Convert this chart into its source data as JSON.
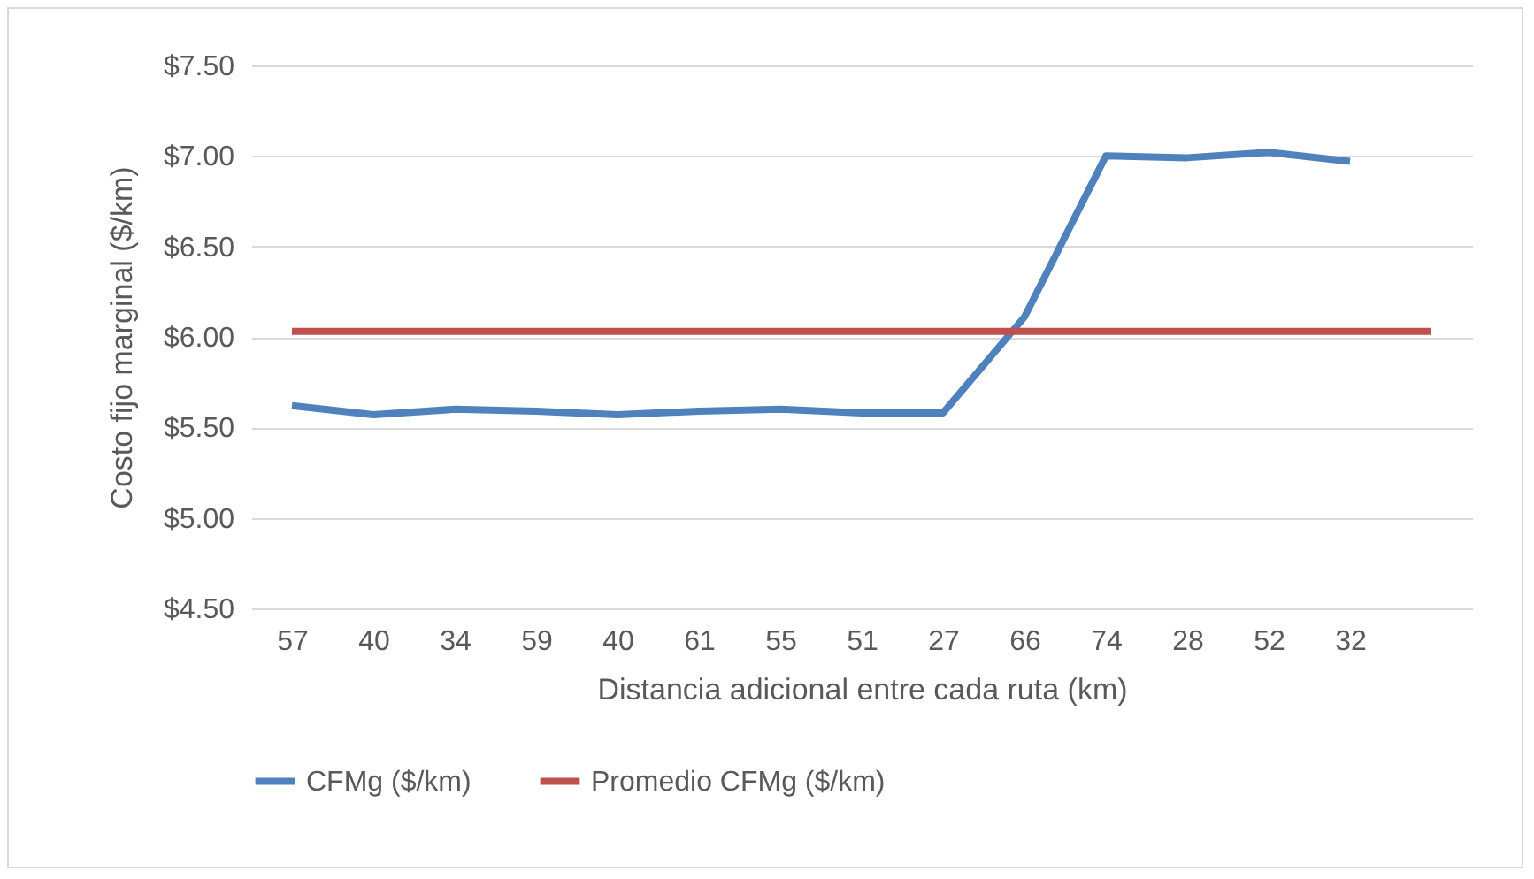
{
  "chart_data": {
    "type": "line",
    "xlabel": "Distancia adicional entre cada ruta (km)",
    "ylabel": "Costo fijo marginal ($/km)",
    "categories": [
      "57",
      "40",
      "34",
      "59",
      "40",
      "61",
      "55",
      "51",
      "27",
      "66",
      "74",
      "28",
      "52",
      "32",
      null
    ],
    "series": [
      {
        "name": "CFMg ($/km)",
        "color": "#4f81bd",
        "values": [
          5.62,
          5.57,
          5.6,
          5.59,
          5.57,
          5.59,
          5.6,
          5.58,
          5.58,
          6.11,
          7.0,
          6.99,
          7.02,
          6.97,
          null
        ]
      },
      {
        "name": "Promedio CFMg ($/km)",
        "color": "#c0504d",
        "values": [
          6.03,
          6.03,
          6.03,
          6.03,
          6.03,
          6.03,
          6.03,
          6.03,
          6.03,
          6.03,
          6.03,
          6.03,
          6.03,
          6.03,
          6.03
        ]
      }
    ],
    "ylim": [
      4.5,
      7.5
    ],
    "yticks": [
      {
        "value": 4.5,
        "label": "$4.50"
      },
      {
        "value": 5,
        "label": "$5.00"
      },
      {
        "value": 5.5,
        "label": "$5.50"
      },
      {
        "value": 6,
        "label": "$6.00"
      },
      {
        "value": 6.5,
        "label": "$6.50"
      },
      {
        "value": 7,
        "label": "$7.00"
      },
      {
        "value": 7.5,
        "label": "$7.50"
      }
    ],
    "grid": "y",
    "legend": "bottom",
    "marker": "none",
    "line_style": "solid"
  }
}
